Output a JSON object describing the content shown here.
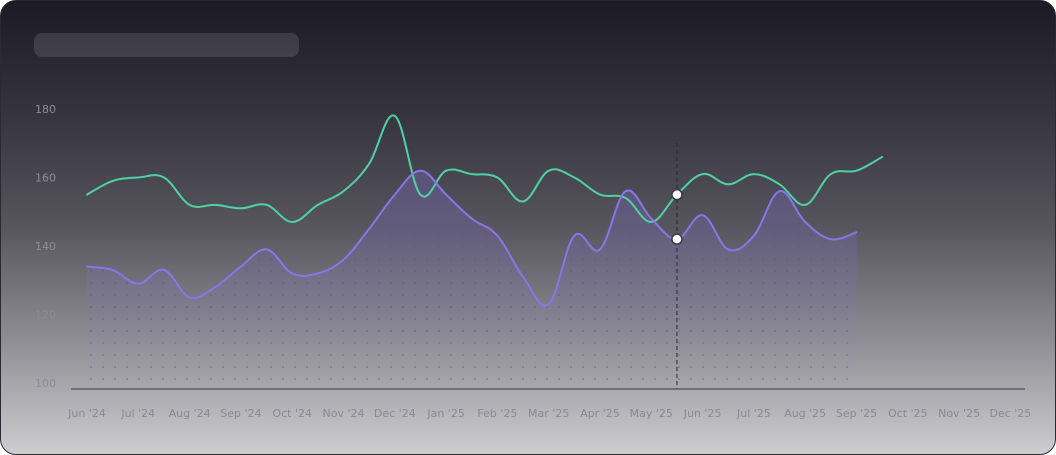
{
  "chart_data": {
    "type": "line",
    "title": "",
    "xlabel": "",
    "ylabel": "",
    "ylim": [
      100,
      180
    ],
    "yticks": [
      100,
      120,
      140,
      160,
      180
    ],
    "grid": false,
    "legend": "none",
    "x_labels": [
      "Jun '24",
      "Jul '24",
      "Aug '24",
      "Sep '24",
      "Oct '24",
      "Nov '24",
      "Dec '24",
      "Jan '25",
      "Feb '25",
      "Mar '25",
      "Apr '25",
      "May '25",
      "Jun '25",
      "Jul '25",
      "Aug '25",
      "Sep '25",
      "Oct '25",
      "Nov '25",
      "Dec '25"
    ],
    "hover_index": 11.5,
    "colors": {
      "green": "#4fd1a0",
      "purple": "#8b74e8"
    },
    "series": [
      {
        "color": "#4fd1a0",
        "points": [
          [
            0,
            155
          ],
          [
            0.5,
            159
          ],
          [
            1,
            160
          ],
          [
            1.5,
            160
          ],
          [
            2,
            152
          ],
          [
            2.5,
            152
          ],
          [
            3,
            151
          ],
          [
            3.5,
            152
          ],
          [
            4,
            147
          ],
          [
            4.5,
            152
          ],
          [
            5,
            156
          ],
          [
            5.5,
            164
          ],
          [
            6,
            178
          ],
          [
            6.5,
            155
          ],
          [
            7,
            162
          ],
          [
            7.5,
            161
          ],
          [
            8,
            160
          ],
          [
            8.5,
            153
          ],
          [
            9,
            162
          ],
          [
            9.5,
            160
          ],
          [
            10,
            155
          ],
          [
            10.5,
            154
          ],
          [
            11,
            147
          ],
          [
            11.5,
            155
          ],
          [
            12,
            161
          ],
          [
            12.5,
            158
          ],
          [
            13,
            161
          ],
          [
            13.5,
            158
          ],
          [
            14,
            152
          ],
          [
            14.5,
            161
          ],
          [
            15,
            162
          ],
          [
            15.5,
            166
          ]
        ]
      },
      {
        "color": "#8b74e8",
        "points": [
          [
            0,
            134
          ],
          [
            0.5,
            133
          ],
          [
            1,
            129
          ],
          [
            1.5,
            133
          ],
          [
            2,
            125
          ],
          [
            2.5,
            128
          ],
          [
            3,
            134
          ],
          [
            3.5,
            139
          ],
          [
            4,
            132
          ],
          [
            4.5,
            132
          ],
          [
            5,
            136
          ],
          [
            5.5,
            145
          ],
          [
            6,
            155
          ],
          [
            6.5,
            162
          ],
          [
            7,
            155
          ],
          [
            7.5,
            148
          ],
          [
            8,
            143
          ],
          [
            8.5,
            131
          ],
          [
            9,
            123
          ],
          [
            9.5,
            143
          ],
          [
            10,
            139
          ],
          [
            10.5,
            156
          ],
          [
            11,
            148
          ],
          [
            11.5,
            142
          ],
          [
            12,
            149
          ],
          [
            12.5,
            139
          ],
          [
            13,
            143
          ],
          [
            13.5,
            156
          ],
          [
            14,
            147
          ],
          [
            14.5,
            142
          ],
          [
            15,
            144
          ]
        ]
      }
    ]
  }
}
